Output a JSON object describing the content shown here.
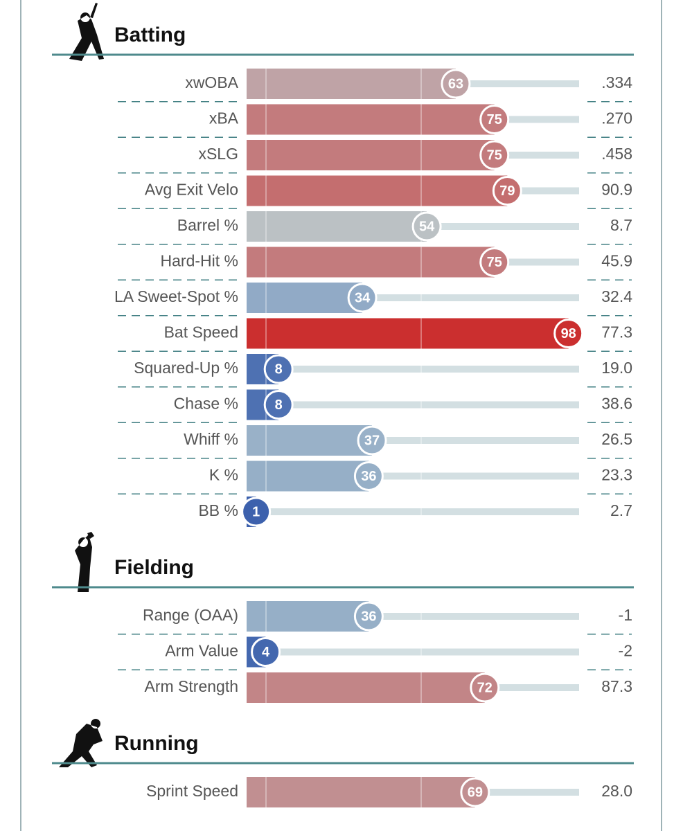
{
  "sections": [
    {
      "title": "Batting",
      "metrics": [
        {
          "name": "xwOBA",
          "percentile": 63,
          "stat": ".334"
        },
        {
          "name": "xBA",
          "percentile": 75,
          "stat": ".270"
        },
        {
          "name": "xSLG",
          "percentile": 75,
          "stat": ".458"
        },
        {
          "name": "Avg Exit Velo",
          "percentile": 79,
          "stat": "90.9"
        },
        {
          "name": "Barrel %",
          "percentile": 54,
          "stat": "8.7"
        },
        {
          "name": "Hard-Hit %",
          "percentile": 75,
          "stat": "45.9"
        },
        {
          "name": "LA Sweet-Spot %",
          "percentile": 34,
          "stat": "32.4"
        },
        {
          "name": "Bat Speed",
          "percentile": 98,
          "stat": "77.3"
        },
        {
          "name": "Squared-Up %",
          "percentile": 8,
          "stat": "19.0"
        },
        {
          "name": "Chase %",
          "percentile": 8,
          "stat": "38.6"
        },
        {
          "name": "Whiff %",
          "percentile": 37,
          "stat": "26.5"
        },
        {
          "name": "K %",
          "percentile": 36,
          "stat": "23.3"
        },
        {
          "name": "BB %",
          "percentile": 1,
          "stat": "2.7"
        }
      ]
    },
    {
      "title": "Fielding",
      "metrics": [
        {
          "name": "Range (OAA)",
          "percentile": 36,
          "stat": "-1"
        },
        {
          "name": "Arm Value",
          "percentile": 4,
          "stat": "-2"
        },
        {
          "name": "Arm Strength",
          "percentile": 72,
          "stat": "87.3"
        }
      ]
    },
    {
      "title": "Running",
      "metrics": [
        {
          "name": "Sprint Speed",
          "percentile": 69,
          "stat": "28.0"
        }
      ]
    }
  ]
}
